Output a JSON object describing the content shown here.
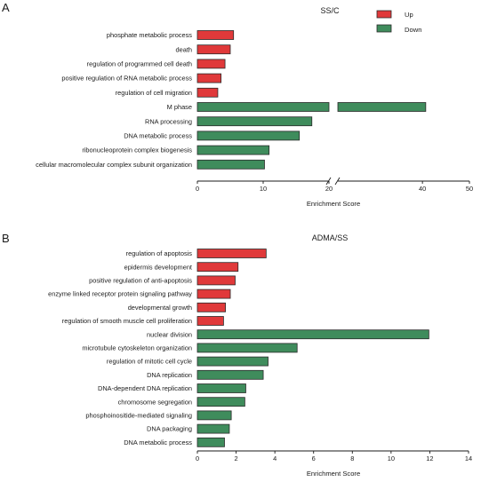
{
  "chart_data": [
    {
      "panel": "A",
      "type": "bar",
      "orientation": "horizontal",
      "title": "SS/C",
      "xlabel": "Enrichment Score",
      "ylabel": "",
      "axis_break": [
        20,
        22
      ],
      "xticks": [
        0,
        10,
        20,
        40,
        50
      ],
      "xlim": [
        0,
        50
      ],
      "colors": {
        "Up": "#e0393a",
        "Down": "#3f8c5c",
        "edge": "#2b2b2b"
      },
      "legend": {
        "position": "top-right",
        "entries": [
          "Up",
          "Down"
        ]
      },
      "categories": [
        "phosphate metabolic process",
        "death",
        "regulation of programmed cell death",
        "positive regulation of RNA metabolic process",
        "regulation of cell migration",
        "M phase",
        "RNA processing",
        "DNA metabolic process",
        "ribonucleoprotein complex biogenesis",
        "cellular macromolecular complex subunit organization"
      ],
      "values": [
        5.5,
        5.0,
        4.2,
        3.6,
        3.1,
        40.7,
        17.4,
        15.5,
        10.9,
        10.2
      ],
      "direction": [
        "Up",
        "Up",
        "Up",
        "Up",
        "Up",
        "Down",
        "Down",
        "Down",
        "Down",
        "Down"
      ]
    },
    {
      "panel": "B",
      "type": "bar",
      "orientation": "horizontal",
      "title": "ADMA/SS",
      "xlabel": "Enrichment Score",
      "ylabel": "",
      "xticks": [
        0,
        2,
        4,
        6,
        8,
        10,
        12,
        14
      ],
      "xlim": [
        0,
        14
      ],
      "colors": {
        "Up": "#e0393a",
        "Down": "#3f8c5c",
        "edge": "#2b2b2b"
      },
      "categories": [
        "regulation of apoptosis",
        "epidermis development",
        "positive regulation of anti-apoptosis",
        "enzyme linked receptor protein signaling pathway",
        "developmental growth",
        "regulation of smooth muscle cell proliferation",
        "nuclear division",
        "microtubule cytoskeleton organization",
        "regulation of mitotic cell cycle",
        "DNA replication",
        "DNA-dependent DNA replication",
        "chromosome segregation",
        "phosphoinositide-mediated signaling",
        "DNA packaging",
        "DNA metabolic process"
      ],
      "values": [
        3.55,
        2.1,
        1.95,
        1.7,
        1.45,
        1.35,
        11.95,
        5.15,
        3.65,
        3.4,
        2.5,
        2.45,
        1.75,
        1.65,
        1.4
      ],
      "direction": [
        "Up",
        "Up",
        "Up",
        "Up",
        "Up",
        "Up",
        "Down",
        "Down",
        "Down",
        "Down",
        "Down",
        "Down",
        "Down",
        "Down",
        "Down"
      ]
    }
  ]
}
